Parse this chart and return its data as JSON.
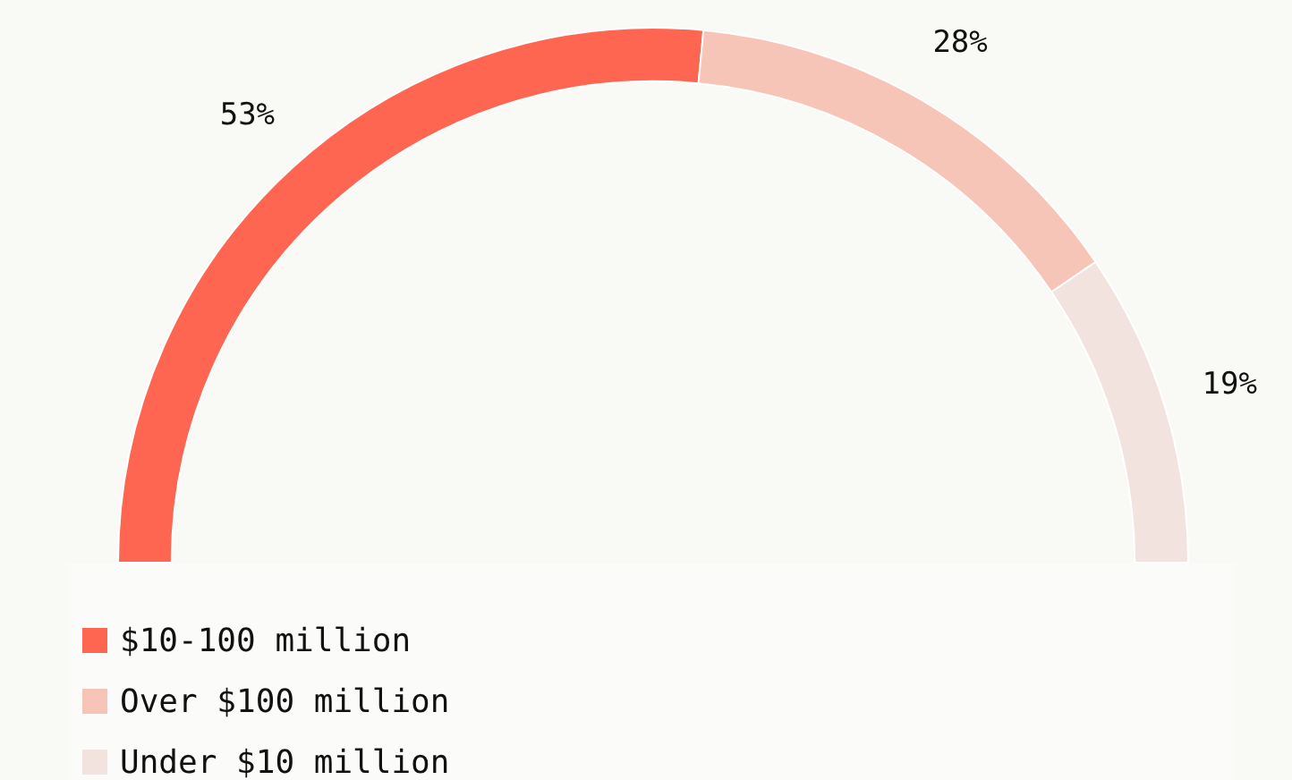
{
  "chart_data": {
    "type": "donut",
    "categories": [
      "$10-100 million",
      "Over $100 million",
      "Under $10 million"
    ],
    "values": [
      53,
      28,
      19
    ],
    "colors": [
      "#ff6652",
      "#f7c4b8",
      "#f2e3de"
    ],
    "value_labels": [
      "53%",
      "28%",
      "19%"
    ],
    "legend": "bottom left"
  }
}
